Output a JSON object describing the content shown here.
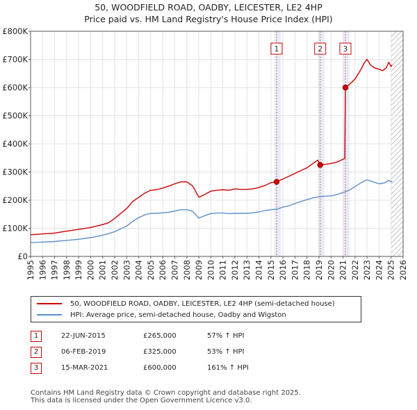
{
  "chart_data": {
    "type": "line",
    "title": "50, WOODFIELD ROAD, OADBY, LEICESTER, LE2 4HP",
    "subtitle": "Price paid vs. HM Land Registry's House Price Index (HPI)",
    "x_range": [
      1995,
      2026
    ],
    "y_range": [
      0,
      800000
    ],
    "y_ticks": [
      0,
      100000,
      200000,
      300000,
      400000,
      500000,
      600000,
      700000,
      800000
    ],
    "y_tick_labels": [
      "£0",
      "£100K",
      "£200K",
      "£300K",
      "£400K",
      "£500K",
      "£600K",
      "£700K",
      "£800K"
    ],
    "x_tick_labels": [
      "1995",
      "1996",
      "1997",
      "1998",
      "1999",
      "2000",
      "2001",
      "2002",
      "2003",
      "2004",
      "2005",
      "2006",
      "2007",
      "2008",
      "2009",
      "2010",
      "2011",
      "2012",
      "2013",
      "2014",
      "2015",
      "2016",
      "2017",
      "2018",
      "2019",
      "2020",
      "2021",
      "2022",
      "2023",
      "2024",
      "2025",
      "2026"
    ],
    "hatch_start": 2025.0,
    "series": [
      {
        "name": "50, WOODFIELD ROAD, OADBY, LEICESTER, LE2 4HP (semi-detached house)",
        "color": "#cc0000",
        "points": [
          [
            1995.0,
            77000
          ],
          [
            1996.0,
            80000
          ],
          [
            1997.0,
            83000
          ],
          [
            1998.0,
            90000
          ],
          [
            1999.0,
            96000
          ],
          [
            2000.0,
            103000
          ],
          [
            2001.0,
            113000
          ],
          [
            2001.5,
            120000
          ],
          [
            2002.0,
            135000
          ],
          [
            2003.0,
            170000
          ],
          [
            2003.5,
            195000
          ],
          [
            2004.0,
            210000
          ],
          [
            2004.5,
            225000
          ],
          [
            2005.0,
            235000
          ],
          [
            2005.5,
            237000
          ],
          [
            2006.0,
            243000
          ],
          [
            2006.5,
            250000
          ],
          [
            2007.0,
            258000
          ],
          [
            2007.5,
            265000
          ],
          [
            2008.0,
            265000
          ],
          [
            2008.5,
            250000
          ],
          [
            2009.0,
            210000
          ],
          [
            2009.5,
            220000
          ],
          [
            2010.0,
            232000
          ],
          [
            2010.5,
            235000
          ],
          [
            2011.0,
            237000
          ],
          [
            2011.5,
            235000
          ],
          [
            2012.0,
            240000
          ],
          [
            2012.5,
            238000
          ],
          [
            2013.0,
            238000
          ],
          [
            2013.5,
            240000
          ],
          [
            2014.0,
            245000
          ],
          [
            2014.5,
            252000
          ],
          [
            2015.0,
            262000
          ],
          [
            2015.47,
            265000
          ],
          [
            2016.0,
            275000
          ],
          [
            2016.5,
            285000
          ],
          [
            2017.0,
            295000
          ],
          [
            2017.5,
            305000
          ],
          [
            2018.0,
            315000
          ],
          [
            2018.5,
            330000
          ],
          [
            2018.9,
            342000
          ],
          [
            2019.1,
            325000
          ],
          [
            2019.5,
            327000
          ],
          [
            2020.0,
            330000
          ],
          [
            2020.5,
            335000
          ],
          [
            2021.0,
            345000
          ],
          [
            2021.15,
            348000
          ],
          [
            2021.2,
            600000
          ],
          [
            2021.5,
            610000
          ],
          [
            2022.0,
            630000
          ],
          [
            2022.5,
            665000
          ],
          [
            2022.8,
            690000
          ],
          [
            2023.0,
            700000
          ],
          [
            2023.3,
            680000
          ],
          [
            2023.6,
            670000
          ],
          [
            2024.0,
            665000
          ],
          [
            2024.3,
            660000
          ],
          [
            2024.6,
            670000
          ],
          [
            2024.8,
            690000
          ],
          [
            2025.0,
            675000
          ],
          [
            2025.1,
            680000
          ]
        ]
      },
      {
        "name": "HPI: Average price, semi-detached house, Oadby and Wigston",
        "color": "#5b8fc9",
        "points": [
          [
            1995.0,
            49000
          ],
          [
            1996.0,
            51000
          ],
          [
            1997.0,
            53000
          ],
          [
            1998.0,
            57000
          ],
          [
            1999.0,
            61000
          ],
          [
            2000.0,
            67000
          ],
          [
            2001.0,
            75000
          ],
          [
            2002.0,
            88000
          ],
          [
            2003.0,
            108000
          ],
          [
            2003.5,
            125000
          ],
          [
            2004.0,
            138000
          ],
          [
            2004.5,
            148000
          ],
          [
            2005.0,
            153000
          ],
          [
            2005.5,
            153000
          ],
          [
            2006.0,
            155000
          ],
          [
            2006.5,
            157000
          ],
          [
            2007.0,
            161000
          ],
          [
            2007.5,
            166000
          ],
          [
            2008.0,
            166000
          ],
          [
            2008.5,
            160000
          ],
          [
            2009.0,
            136000
          ],
          [
            2009.5,
            145000
          ],
          [
            2010.0,
            152000
          ],
          [
            2010.5,
            154000
          ],
          [
            2011.0,
            154000
          ],
          [
            2011.5,
            152000
          ],
          [
            2012.0,
            153000
          ],
          [
            2012.5,
            153000
          ],
          [
            2013.0,
            153000
          ],
          [
            2013.5,
            155000
          ],
          [
            2014.0,
            158000
          ],
          [
            2014.5,
            163000
          ],
          [
            2015.0,
            166000
          ],
          [
            2015.5,
            168000
          ],
          [
            2016.0,
            175000
          ],
          [
            2016.5,
            180000
          ],
          [
            2017.0,
            188000
          ],
          [
            2017.5,
            195000
          ],
          [
            2018.0,
            202000
          ],
          [
            2018.5,
            208000
          ],
          [
            2019.0,
            212000
          ],
          [
            2019.5,
            214000
          ],
          [
            2020.0,
            215000
          ],
          [
            2020.5,
            220000
          ],
          [
            2021.0,
            227000
          ],
          [
            2021.5,
            235000
          ],
          [
            2022.0,
            248000
          ],
          [
            2022.5,
            262000
          ],
          [
            2023.0,
            272000
          ],
          [
            2023.5,
            265000
          ],
          [
            2024.0,
            258000
          ],
          [
            2024.5,
            262000
          ],
          [
            2024.8,
            270000
          ],
          [
            2025.0,
            265000
          ],
          [
            2025.1,
            268000
          ]
        ]
      }
    ],
    "sales": [
      {
        "label": "1",
        "x": 2015.47,
        "value": 265000,
        "date": "22-JUN-2015",
        "price": "£265,000",
        "hpi": "57% ↑ HPI"
      },
      {
        "label": "2",
        "x": 2019.1,
        "value": 325000,
        "date": "06-FEB-2019",
        "price": "£325,000",
        "hpi": "53% ↑ HPI"
      },
      {
        "label": "3",
        "x": 2021.2,
        "value": 600000,
        "date": "15-MAR-2021",
        "price": "£600,000",
        "hpi": "161% ↑ HPI"
      }
    ]
  },
  "legend": {
    "line1": "50, WOODFIELD ROAD, OADBY, LEICESTER, LE2 4HP (semi-detached house)",
    "line2": "HPI: Average price, semi-detached house, Oadby and Wigston"
  },
  "footer": {
    "line1": "Contains HM Land Registry data © Crown copyright and database right 2025.",
    "line2": "This data is licensed under the Open Government Licence v3.0."
  }
}
